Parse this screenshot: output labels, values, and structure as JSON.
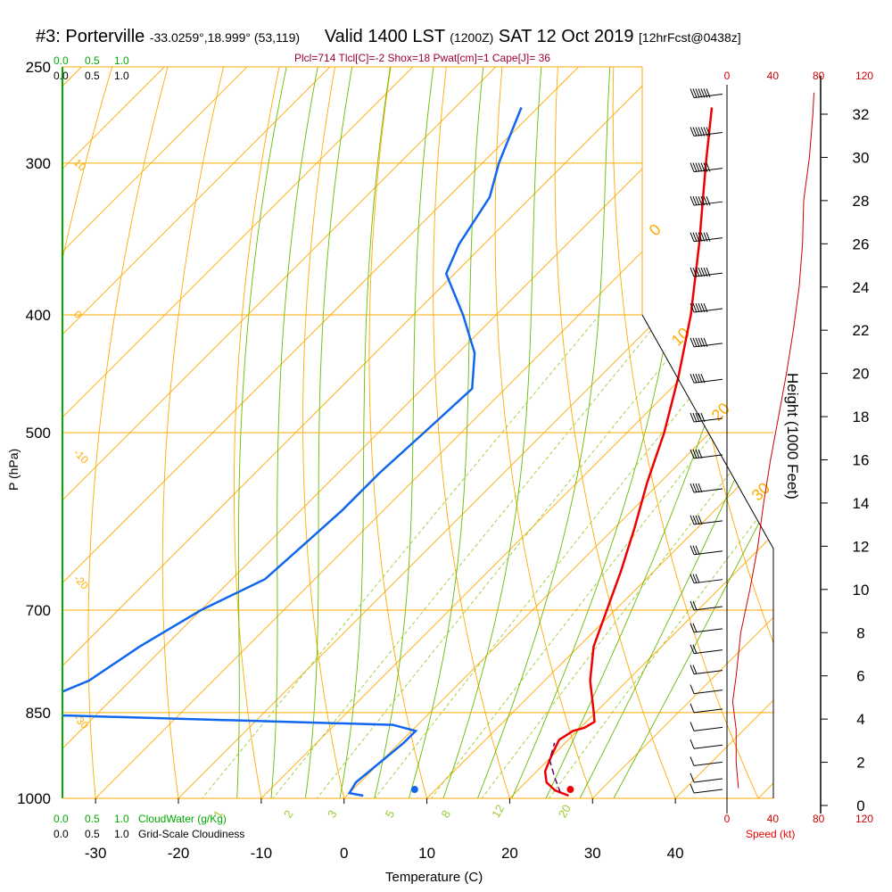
{
  "title": {
    "station": "#3: Porterville",
    "coords": "-33.0259°,18.999° (53,119)",
    "valid": "Valid 1400 LST",
    "utc": "(1200Z)",
    "date": "SAT 12 Oct 2019",
    "forecast": "[12hrFcst@0438z]"
  },
  "stats": "Plcl=714 Tlcl[C]=-2 Shox=18 Pwat[cm]=1 Cape[J]= 36",
  "cloud_scale_top": {
    "green": [
      "0.0",
      "0.5",
      "1.0"
    ],
    "black": [
      "0.0",
      "0.5",
      "1.0"
    ]
  },
  "cloud_scale_bottom": {
    "green": [
      "0.0",
      "0.5",
      "1.0"
    ],
    "green_label": "CloudWater (g/Kg)",
    "black": [
      "0.0",
      "0.5",
      "1.0"
    ],
    "black_label": "Grid-Scale Cloudiness"
  },
  "colors": {
    "isobar": "#ffaa00",
    "dry_adiabat": "#ffaa00",
    "moist_adiabat": "#66bb00",
    "mixing_ratio": "#99cc33",
    "temperature": "#ee0000",
    "dewpoint": "#1166ee",
    "parcel": "#660066",
    "stats": "#990033",
    "wind_speed": "#cc0000",
    "cloud": "#00aa00"
  },
  "chart_data": {
    "type": "skew-t",
    "xlabel": "Temperature (C)",
    "ylabel": "P (hPa)",
    "x_ticks": [
      -30,
      -20,
      -10,
      0,
      10,
      20,
      30,
      40
    ],
    "y_ticks": [
      250,
      300,
      400,
      500,
      700,
      850,
      1000
    ],
    "y_scale": "log",
    "xlim": [
      -34,
      36
    ],
    "ylim": [
      1000,
      250
    ],
    "height_axis_label": "Height (1000 Feet)",
    "height_ticks": [
      0,
      2,
      4,
      6,
      8,
      10,
      12,
      14,
      16,
      18,
      20,
      22,
      24,
      26,
      28,
      30,
      32
    ],
    "speed_label": "Speed (kt)",
    "speed_ticks": [
      0,
      40,
      80,
      120
    ],
    "dry_adiabat_labels": [
      {
        "label": "10",
        "p": 300
      },
      {
        "label": "0",
        "p": 400
      },
      {
        "label": "-10",
        "p": 520
      },
      {
        "label": "-20",
        "p": 660
      },
      {
        "label": "-30",
        "p": 860
      }
    ],
    "moist_labels": [
      {
        "label": "0",
        "p": 345
      },
      {
        "label": "10",
        "p": 425
      },
      {
        "label": "20",
        "p": 490
      },
      {
        "label": "30",
        "p": 570
      }
    ],
    "mixing_ratio_labels": [
      "1",
      "2",
      "3",
      "5",
      "8",
      "12",
      "20"
    ],
    "mixing_ratio_values": [
      1,
      2,
      3,
      5,
      8,
      12,
      20
    ],
    "temperature": [
      {
        "p": 995,
        "t": 26.8
      },
      {
        "p": 985,
        "t": 24.5
      },
      {
        "p": 970,
        "t": 22.5
      },
      {
        "p": 950,
        "t": 21.0
      },
      {
        "p": 920,
        "t": 19.8
      },
      {
        "p": 895,
        "t": 18.9
      },
      {
        "p": 880,
        "t": 19.5
      },
      {
        "p": 875,
        "t": 20.5
      },
      {
        "p": 865,
        "t": 21.0
      },
      {
        "p": 850,
        "t": 19.8
      },
      {
        "p": 800,
        "t": 15.5
      },
      {
        "p": 750,
        "t": 11.8
      },
      {
        "p": 700,
        "t": 9.0
      },
      {
        "p": 650,
        "t": 6.0
      },
      {
        "p": 600,
        "t": 2.5
      },
      {
        "p": 550,
        "t": -1.5
      },
      {
        "p": 500,
        "t": -5.5
      },
      {
        "p": 450,
        "t": -10.5
      },
      {
        "p": 400,
        "t": -16.5
      },
      {
        "p": 350,
        "t": -24.0
      },
      {
        "p": 300,
        "t": -33.0
      },
      {
        "p": 270,
        "t": -39.0
      }
    ],
    "dewpoint": [
      {
        "p": 995,
        "t": 2.0
      },
      {
        "p": 990,
        "t": 0.0
      },
      {
        "p": 970,
        "t": -0.5
      },
      {
        "p": 900,
        "t": 0.5
      },
      {
        "p": 880,
        "t": 0.5
      },
      {
        "p": 870,
        "t": -3.0
      },
      {
        "p": 855,
        "t": -43.0
      },
      {
        "p": 848,
        "t": -68.0
      },
      {
        "p": 835,
        "t": -68.0
      },
      {
        "p": 827,
        "t": -47.0
      },
      {
        "p": 818,
        "t": -47.0
      },
      {
        "p": 800,
        "t": -45.0
      },
      {
        "p": 750,
        "t": -43.0
      },
      {
        "p": 700,
        "t": -40.0
      },
      {
        "p": 660,
        "t": -36.0
      },
      {
        "p": 620,
        "t": -35.5
      },
      {
        "p": 580,
        "t": -35.0
      },
      {
        "p": 540,
        "t": -35.0
      },
      {
        "p": 500,
        "t": -34.5
      },
      {
        "p": 460,
        "t": -34.0
      },
      {
        "p": 430,
        "t": -38.0
      },
      {
        "p": 400,
        "t": -44.0
      },
      {
        "p": 370,
        "t": -51.0
      },
      {
        "p": 350,
        "t": -53.0
      },
      {
        "p": 320,
        "t": -55.0
      },
      {
        "p": 300,
        "t": -58.0
      },
      {
        "p": 270,
        "t": -62.0
      }
    ],
    "parcel": [
      {
        "p": 990,
        "t": 25.5
      },
      {
        "p": 960,
        "t": 22.8
      },
      {
        "p": 930,
        "t": 20.2
      },
      {
        "p": 900,
        "t": 18.7
      }
    ],
    "surface_temperature": {
      "p": 995,
      "t": 27.0
    },
    "surface_dewpoint": {
      "p": 995,
      "t": 8.2
    },
    "wind_speed_profile": [
      {
        "h": 0.8,
        "s": 10
      },
      {
        "h": 2.0,
        "s": 8
      },
      {
        "h": 3.5,
        "s": 8
      },
      {
        "h": 4.8,
        "s": 5
      },
      {
        "h": 6.0,
        "s": 8
      },
      {
        "h": 8.0,
        "s": 12
      },
      {
        "h": 10.0,
        "s": 20
      },
      {
        "h": 12.0,
        "s": 27
      },
      {
        "h": 14.0,
        "s": 32
      },
      {
        "h": 16.0,
        "s": 38
      },
      {
        "h": 18.0,
        "s": 45
      },
      {
        "h": 20.0,
        "s": 52
      },
      {
        "h": 22.0,
        "s": 58
      },
      {
        "h": 24.0,
        "s": 63
      },
      {
        "h": 26.0,
        "s": 66
      },
      {
        "h": 28.0,
        "s": 67
      },
      {
        "h": 30.0,
        "s": 72
      },
      {
        "h": 32.0,
        "s": 75
      },
      {
        "h": 33.0,
        "s": 76
      }
    ],
    "wind_barbs": [
      {
        "p": 265,
        "spd": 70
      },
      {
        "p": 285,
        "spd": 70
      },
      {
        "p": 305,
        "spd": 70
      },
      {
        "p": 325,
        "spd": 65
      },
      {
        "p": 348,
        "spd": 65
      },
      {
        "p": 372,
        "spd": 65
      },
      {
        "p": 398,
        "spd": 60
      },
      {
        "p": 425,
        "spd": 55
      },
      {
        "p": 455,
        "spd": 50
      },
      {
        "p": 490,
        "spd": 45
      },
      {
        "p": 525,
        "spd": 40
      },
      {
        "p": 560,
        "spd": 40
      },
      {
        "p": 595,
        "spd": 35
      },
      {
        "p": 630,
        "spd": 30
      },
      {
        "p": 665,
        "spd": 25
      },
      {
        "p": 700,
        "spd": 20
      },
      {
        "p": 730,
        "spd": 20
      },
      {
        "p": 760,
        "spd": 15
      },
      {
        "p": 790,
        "spd": 15
      },
      {
        "p": 820,
        "spd": 10
      },
      {
        "p": 850,
        "spd": 10
      },
      {
        "p": 880,
        "spd": 10
      },
      {
        "p": 910,
        "spd": 10
      },
      {
        "p": 940,
        "spd": 10
      },
      {
        "p": 970,
        "spd": 10
      },
      {
        "p": 990,
        "spd": 10
      }
    ]
  }
}
